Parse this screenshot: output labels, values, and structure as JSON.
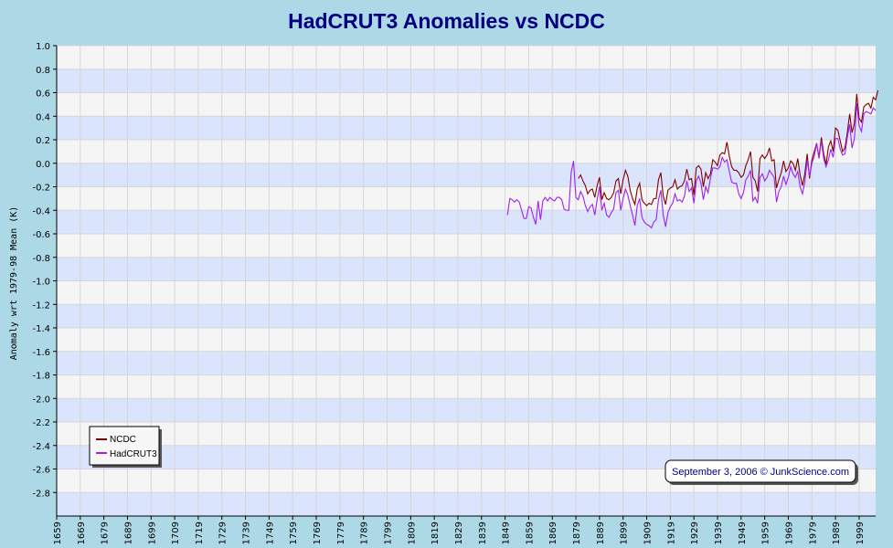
{
  "chart_data": {
    "type": "line",
    "title": "HadCRUT3 Anomalies vs NCDC",
    "ylabel": "Anomaly wrt 1979-98 Mean (K)",
    "xlabel": "",
    "ylim": [
      -3.0,
      1.0
    ],
    "xlim": [
      1659,
      2006
    ],
    "y_ticks": [
      "1.0",
      "0.8",
      "0.6",
      "0.4",
      "0.2",
      "0.0",
      "-0.2",
      "-0.4",
      "-0.6",
      "-0.8",
      "-1.0",
      "-1.2",
      "-1.4",
      "-1.6",
      "-1.8",
      "-2.0",
      "-2.2",
      "-2.4",
      "-2.6",
      "-2.8"
    ],
    "x_ticks": [
      "1659",
      "1669",
      "1679",
      "1689",
      "1699",
      "1709",
      "1719",
      "1729",
      "1739",
      "1749",
      "1759",
      "1769",
      "1779",
      "1789",
      "1799",
      "1809",
      "1819",
      "1829",
      "1839",
      "1849",
      "1859",
      "1869",
      "1879",
      "1889",
      "1899",
      "1909",
      "1919",
      "1929",
      "1939",
      "1949",
      "1959",
      "1969",
      "1979",
      "1989",
      "1999"
    ],
    "grid": true,
    "legend_position": "bottom-left",
    "note": "September 3, 2006 © JunkScience.com",
    "colors": {
      "background": "#add8e6",
      "plot_band_light": "#f5f5f5",
      "plot_band_blue": "#dbe4fd",
      "title": "#000080",
      "ncdc": "#800000",
      "hadcrut3": "#a020f0"
    },
    "series": [
      {
        "name": "NCDC",
        "x_start": 1880,
        "values": [
          -0.13,
          -0.1,
          -0.15,
          -0.19,
          -0.26,
          -0.23,
          -0.22,
          -0.29,
          -0.19,
          -0.12,
          -0.31,
          -0.25,
          -0.3,
          -0.31,
          -0.29,
          -0.25,
          -0.15,
          -0.13,
          -0.26,
          -0.14,
          -0.06,
          -0.11,
          -0.23,
          -0.3,
          -0.35,
          -0.22,
          -0.17,
          -0.31,
          -0.34,
          -0.36,
          -0.34,
          -0.35,
          -0.3,
          -0.3,
          -0.14,
          -0.08,
          -0.28,
          -0.35,
          -0.23,
          -0.21,
          -0.2,
          -0.14,
          -0.22,
          -0.2,
          -0.19,
          -0.15,
          -0.05,
          -0.14,
          -0.13,
          -0.27,
          -0.04,
          -0.02,
          -0.05,
          -0.2,
          -0.08,
          -0.13,
          -0.09,
          0.03,
          0.01,
          -0.02,
          0.07,
          0.09,
          0.08,
          0.18,
          0.06,
          -0.03,
          -0.06,
          -0.06,
          -0.08,
          -0.12,
          -0.1,
          -0.02,
          0.03,
          0.1,
          -0.12,
          -0.15,
          -0.24,
          0.04,
          0.07,
          0.04,
          0.07,
          0.13,
          0.02,
          0.03,
          -0.21,
          -0.14,
          -0.08,
          0.02,
          -0.07,
          -0.04,
          0.02,
          0.0,
          -0.06,
          0.04,
          -0.1,
          -0.19,
          -0.09,
          0.08,
          -0.13,
          0.03,
          0.1,
          0.17,
          0.05,
          0.22,
          0.08,
          -0.01,
          0.14,
          0.19,
          0.1,
          0.3,
          0.28,
          0.19,
          0.1,
          0.13,
          0.26,
          0.42,
          0.26,
          0.34,
          0.59,
          0.38,
          0.35,
          0.48,
          0.5,
          0.51,
          0.47,
          0.56,
          0.54,
          0.62
        ]
      },
      {
        "name": "HadCRUT3",
        "x_start": 1850,
        "values": [
          -0.44,
          -0.3,
          -0.31,
          -0.33,
          -0.31,
          -0.33,
          -0.4,
          -0.47,
          -0.47,
          -0.37,
          -0.38,
          -0.46,
          -0.52,
          -0.32,
          -0.48,
          -0.32,
          -0.29,
          -0.32,
          -0.29,
          -0.31,
          -0.32,
          -0.29,
          -0.29,
          -0.31,
          -0.39,
          -0.4,
          -0.4,
          -0.08,
          0.02,
          -0.29,
          -0.31,
          -0.24,
          -0.28,
          -0.36,
          -0.41,
          -0.37,
          -0.35,
          -0.44,
          -0.31,
          -0.2,
          -0.4,
          -0.34,
          -0.44,
          -0.46,
          -0.42,
          -0.39,
          -0.25,
          -0.23,
          -0.4,
          -0.3,
          -0.22,
          -0.27,
          -0.36,
          -0.44,
          -0.53,
          -0.36,
          -0.3,
          -0.46,
          -0.5,
          -0.52,
          -0.53,
          -0.55,
          -0.5,
          -0.48,
          -0.31,
          -0.23,
          -0.44,
          -0.54,
          -0.42,
          -0.37,
          -0.34,
          -0.26,
          -0.32,
          -0.31,
          -0.33,
          -0.28,
          -0.15,
          -0.24,
          -0.21,
          -0.34,
          -0.15,
          -0.11,
          -0.17,
          -0.31,
          -0.2,
          -0.25,
          -0.13,
          -0.04,
          -0.04,
          -0.05,
          -0.03,
          0.05,
          0.01,
          0.03,
          -0.07,
          -0.16,
          -0.17,
          -0.17,
          -0.26,
          -0.3,
          -0.25,
          -0.14,
          -0.11,
          -0.06,
          -0.32,
          -0.29,
          -0.34,
          -0.12,
          -0.09,
          -0.15,
          -0.12,
          -0.06,
          -0.09,
          -0.12,
          -0.33,
          -0.24,
          -0.2,
          -0.11,
          -0.18,
          -0.12,
          -0.03,
          -0.09,
          -0.12,
          -0.07,
          -0.2,
          -0.26,
          -0.16,
          0.03,
          -0.11,
          0.0,
          0.06,
          0.17,
          0.04,
          0.19,
          0.04,
          -0.03,
          0.03,
          0.12,
          0.05,
          0.21,
          0.21,
          0.12,
          0.07,
          0.08,
          0.22,
          0.33,
          0.13,
          0.21,
          0.51,
          0.32,
          0.27,
          0.42,
          0.44,
          0.43,
          0.42,
          0.47,
          0.45
        ]
      }
    ]
  }
}
